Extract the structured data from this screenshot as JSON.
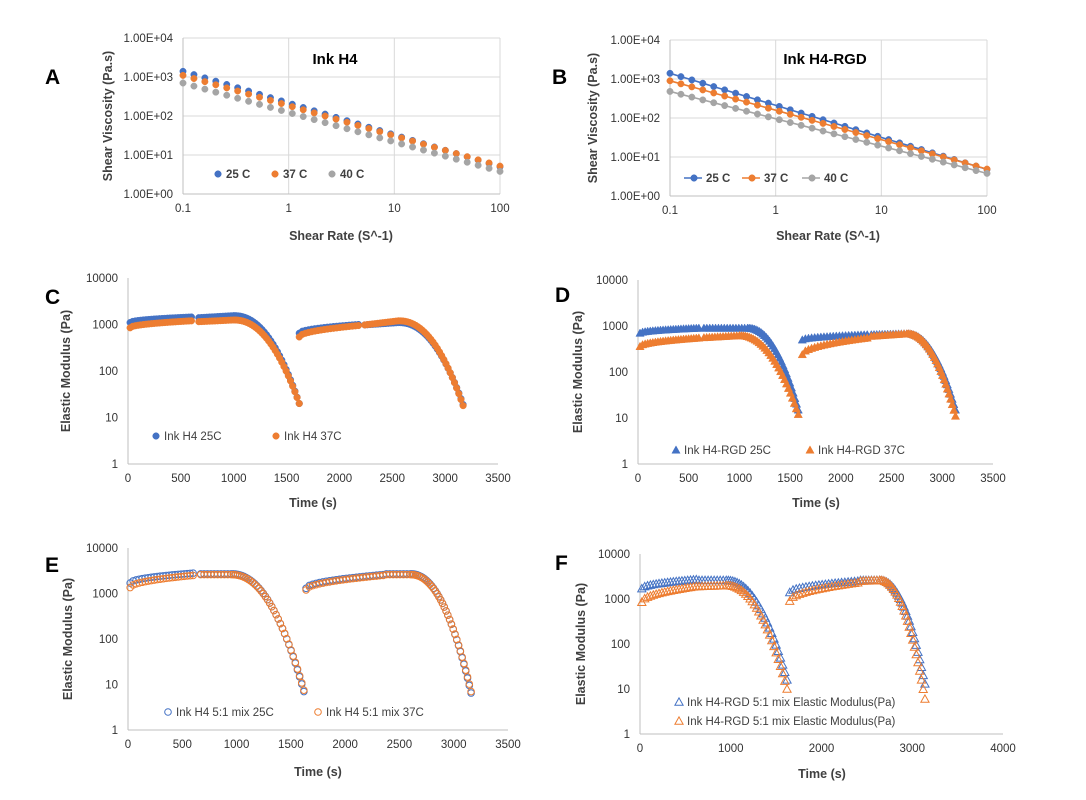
{
  "colors": {
    "blue": "#4472C4",
    "orange": "#ED7D31",
    "gray": "#A5A5A5"
  },
  "chart_data": [
    {
      "id": "A",
      "panel_label": "A",
      "type": "scatter",
      "title": "Ink H4",
      "xlabel": "Shear Rate (S^-1)",
      "ylabel": "Shear Viscosity (Pa.s)",
      "x_scale": "log",
      "y_scale": "log",
      "xlim": [
        0.1,
        100
      ],
      "ylim": [
        1,
        10000
      ],
      "x_ticks": [
        0.1,
        1,
        10,
        100
      ],
      "x_tick_labels": [
        "0.1",
        "1",
        "10",
        "100"
      ],
      "y_ticks": [
        1,
        10,
        100,
        1000,
        10000
      ],
      "y_tick_labels": [
        "1.00E+00",
        "1.00E+01",
        "1.00E+02",
        "1.00E+03",
        "1.00E+04"
      ],
      "grid": true,
      "legend_position": "bottom-left",
      "series": [
        {
          "name": "25 C",
          "color": "#4472C4",
          "marker": "circle",
          "x_range": [
            0.1,
            100
          ],
          "y_at_xmin": 1400,
          "y_at_xmax": 5.0,
          "n_points": 30
        },
        {
          "name": "37 C",
          "color": "#ED7D31",
          "marker": "circle",
          "x_range": [
            0.1,
            100
          ],
          "y_at_xmin": 1100,
          "y_at_xmax": 5.2,
          "n_points": 30
        },
        {
          "name": "40 C",
          "color": "#A5A5A5",
          "marker": "circle",
          "x_range": [
            0.1,
            100
          ],
          "y_at_xmin": 700,
          "y_at_xmax": 3.8,
          "n_points": 30
        }
      ]
    },
    {
      "id": "B",
      "panel_label": "B",
      "type": "line",
      "title": "Ink H4-RGD",
      "xlabel": "Shear Rate (S^-1)",
      "ylabel": "Shear Viscosity (Pa.s)",
      "x_scale": "log",
      "y_scale": "log",
      "xlim": [
        0.1,
        100
      ],
      "ylim": [
        1,
        10000
      ],
      "x_ticks": [
        0.1,
        1,
        10,
        100
      ],
      "x_tick_labels": [
        "0.1",
        "1",
        "10",
        "100"
      ],
      "y_ticks": [
        1,
        10,
        100,
        1000,
        10000
      ],
      "y_tick_labels": [
        "1.00E+00",
        "1.00E+01",
        "1.00E+02",
        "1.00E+03",
        "1.00E+04"
      ],
      "grid": true,
      "legend_position": "bottom-left",
      "series": [
        {
          "name": "25 C",
          "color": "#4472C4",
          "marker": "circle",
          "x_range": [
            0.1,
            100
          ],
          "y_at_xmin": 1400,
          "y_at_xmax": 4.8,
          "n_points": 30
        },
        {
          "name": "37 C",
          "color": "#ED7D31",
          "marker": "circle",
          "x_range": [
            0.1,
            100
          ],
          "y_at_xmin": 900,
          "y_at_xmax": 4.9,
          "n_points": 30
        },
        {
          "name": "40 C",
          "color": "#A5A5A5",
          "marker": "circle",
          "x_range": [
            0.1,
            100
          ],
          "y_at_xmin": 480,
          "y_at_xmax": 3.8,
          "n_points": 30
        }
      ]
    },
    {
      "id": "C",
      "panel_label": "C",
      "type": "scatter",
      "title": "",
      "xlabel": "Time (s)",
      "ylabel": "Elastic Modulus (Pa)",
      "x_scale": "linear",
      "y_scale": "log",
      "xlim": [
        0,
        3500
      ],
      "ylim": [
        1,
        10000
      ],
      "x_ticks": [
        0,
        500,
        1000,
        1500,
        2000,
        2500,
        3000,
        3500
      ],
      "x_tick_labels": [
        "0",
        "500",
        "1000",
        "1500",
        "2000",
        "2500",
        "3000",
        "3500"
      ],
      "y_ticks": [
        1,
        10,
        100,
        1000,
        10000
      ],
      "y_tick_labels": [
        "1",
        "10",
        "100",
        "1000",
        "10000"
      ],
      "grid": false,
      "legend_position": "bottom-left",
      "series": [
        {
          "name": "Ink H4 25C",
          "color": "#4472C4",
          "marker": "circle",
          "fill": "solid",
          "segments": [
            {
              "x0": 20,
              "x1": 600,
              "y0": 1100,
              "y1": 1450,
              "n": 24
            },
            {
              "x0": 670,
              "x1": 1000,
              "y0": 1400,
              "y1": 1550,
              "x_drop": 1420,
              "y_plateau_end": 1300,
              "x_end": 1620,
              "y_end": 20,
              "n_plateau": 14,
              "n_drop": 30
            },
            {
              "x0": 1620,
              "x1": 2180,
              "y0": 650,
              "y1": 1000,
              "n": 20
            },
            {
              "x0": 2240,
              "x1": 2560,
              "y0": 980,
              "y1": 1100,
              "x_drop": 2900,
              "y_plateau_end": 950,
              "x_end": 3170,
              "y_end": 19,
              "n_plateau": 14,
              "n_drop": 30
            }
          ]
        },
        {
          "name": "Ink H4 37C",
          "color": "#ED7D31",
          "marker": "circle",
          "fill": "solid",
          "segments": [
            {
              "x0": 20,
              "x1": 600,
              "y0": 850,
              "y1": 1200,
              "n": 24
            },
            {
              "x0": 670,
              "x1": 1000,
              "y0": 1150,
              "y1": 1250,
              "x_drop": 1400,
              "y_plateau_end": 1100,
              "x_end": 1620,
              "y_end": 20,
              "n_plateau": 14,
              "n_drop": 30
            },
            {
              "x0": 1620,
              "x1": 2180,
              "y0": 540,
              "y1": 950,
              "n": 20
            },
            {
              "x0": 2240,
              "x1": 2560,
              "y0": 980,
              "y1": 1200,
              "x_drop": 2900,
              "y_plateau_end": 1050,
              "x_end": 3170,
              "y_end": 18,
              "n_plateau": 14,
              "n_drop": 30
            }
          ]
        }
      ]
    },
    {
      "id": "D",
      "panel_label": "D",
      "type": "scatter",
      "title": "",
      "xlabel": "Time (s)",
      "ylabel": "Elastic Modulus (Pa)",
      "x_scale": "linear",
      "y_scale": "log",
      "xlim": [
        0,
        3500
      ],
      "ylim": [
        1,
        10000
      ],
      "x_ticks": [
        0,
        500,
        1000,
        1500,
        2000,
        2500,
        3000,
        3500
      ],
      "x_tick_labels": [
        "0",
        "500",
        "1000",
        "1500",
        "2000",
        "2500",
        "3000",
        "3500"
      ],
      "y_ticks": [
        1,
        10,
        100,
        1000,
        10000
      ],
      "y_tick_labels": [
        "1",
        "10",
        "100",
        "1000",
        "10000"
      ],
      "grid": false,
      "legend_position": "bottom-left",
      "series": [
        {
          "name": "Ink H4-RGD 25C",
          "color": "#4472C4",
          "marker": "triangle",
          "fill": "solid",
          "segments": [
            {
              "x0": 20,
              "x1": 600,
              "y0": 700,
              "y1": 900,
              "n": 24
            },
            {
              "x0": 650,
              "x1": 1080,
              "y0": 900,
              "y1": 900,
              "x_drop": 1330,
              "y_plateau_end": 800,
              "x_end": 1580,
              "y_end": 15,
              "n_plateau": 16,
              "n_drop": 30
            },
            {
              "x0": 1620,
              "x1": 2260,
              "y0": 500,
              "y1": 650,
              "n": 22
            },
            {
              "x0": 2300,
              "x1": 2650,
              "y0": 650,
              "y1": 680,
              "x_drop": 2880,
              "y_plateau_end": 600,
              "x_end": 3130,
              "y_end": 15,
              "n_plateau": 14,
              "n_drop": 30
            }
          ]
        },
        {
          "name": "Ink H4-RGD 37C",
          "color": "#ED7D31",
          "marker": "triangle",
          "fill": "solid",
          "segments": [
            {
              "x0": 20,
              "x1": 600,
              "y0": 360,
              "y1": 550,
              "n": 24
            },
            {
              "x0": 650,
              "x1": 1000,
              "y0": 560,
              "y1": 620,
              "x_drop": 1280,
              "y_plateau_end": 520,
              "x_end": 1580,
              "y_end": 12,
              "n_plateau": 14,
              "n_drop": 30
            },
            {
              "x0": 1620,
              "x1": 2260,
              "y0": 240,
              "y1": 550,
              "n": 22
            },
            {
              "x0": 2300,
              "x1": 2650,
              "y0": 600,
              "y1": 680,
              "x_drop": 2850,
              "y_plateau_end": 600,
              "x_end": 3130,
              "y_end": 11,
              "n_plateau": 14,
              "n_drop": 30
            }
          ]
        }
      ]
    },
    {
      "id": "E",
      "panel_label": "E",
      "type": "scatter",
      "title": "",
      "xlabel": "Time (s)",
      "ylabel": "Elastic Modulus (Pa)",
      "x_scale": "linear",
      "y_scale": "log",
      "xlim": [
        0,
        3500
      ],
      "ylim": [
        1,
        10000
      ],
      "x_ticks": [
        0,
        500,
        1000,
        1500,
        2000,
        2500,
        3000,
        3500
      ],
      "x_tick_labels": [
        "0",
        "500",
        "1000",
        "1500",
        "2000",
        "2500",
        "3000",
        "3500"
      ],
      "y_ticks": [
        1,
        10,
        100,
        1000,
        10000
      ],
      "y_tick_labels": [
        "1",
        "10",
        "100",
        "1000",
        "10000"
      ],
      "grid": false,
      "legend_position": "bottom-left",
      "series": [
        {
          "name": "Ink H4 5:1 mix 25C",
          "color": "#4472C4",
          "marker": "circle",
          "fill": "open",
          "segments": [
            {
              "x0": 20,
              "x1": 600,
              "y0": 1700,
              "y1": 2800,
              "n": 22
            },
            {
              "x0": 670,
              "x1": 950,
              "y0": 2700,
              "y1": 2700,
              "x_drop": 1100,
              "y_plateau_end": 2300,
              "x_end": 1620,
              "y_end": 7,
              "n_plateau": 10,
              "n_drop": 34
            },
            {
              "x0": 1640,
              "x1": 2350,
              "y0": 1300,
              "y1": 2600,
              "n": 24
            },
            {
              "x0": 2380,
              "x1": 2600,
              "y0": 2700,
              "y1": 2700,
              "x_drop": 2700,
              "y_plateau_end": 2300,
              "x_end": 3160,
              "y_end": 6.5,
              "n_plateau": 8,
              "n_drop": 34
            }
          ]
        },
        {
          "name": "Ink H4 5:1 mix 37C",
          "color": "#ED7D31",
          "marker": "circle",
          "fill": "open",
          "segments": [
            {
              "x0": 20,
              "x1": 600,
              "y0": 1350,
              "y1": 2500,
              "n": 22
            },
            {
              "x0": 670,
              "x1": 950,
              "y0": 2600,
              "y1": 2600,
              "x_drop": 1100,
              "y_plateau_end": 2200,
              "x_end": 1620,
              "y_end": 7.5,
              "n_plateau": 10,
              "n_drop": 34
            },
            {
              "x0": 1640,
              "x1": 2350,
              "y0": 1200,
              "y1": 2500,
              "n": 24
            },
            {
              "x0": 2380,
              "x1": 2600,
              "y0": 2600,
              "y1": 2600,
              "x_drop": 2700,
              "y_plateau_end": 2200,
              "x_end": 3160,
              "y_end": 7,
              "n_plateau": 8,
              "n_drop": 34
            }
          ]
        }
      ]
    },
    {
      "id": "F",
      "panel_label": "F",
      "type": "scatter",
      "title": "",
      "xlabel": "Time (s)",
      "ylabel": "Elastic Modulus (Pa)",
      "x_scale": "linear",
      "y_scale": "log",
      "xlim": [
        0,
        4000
      ],
      "ylim": [
        1,
        10000
      ],
      "x_ticks": [
        0,
        1000,
        2000,
        3000,
        4000
      ],
      "x_tick_labels": [
        "0",
        "1000",
        "2000",
        "3000",
        "4000"
      ],
      "y_ticks": [
        1,
        10,
        100,
        1000,
        10000
      ],
      "y_tick_labels": [
        "1",
        "10",
        "100",
        "1000",
        "10000"
      ],
      "grid": false,
      "legend_position": "bottom-left",
      "series": [
        {
          "name": "Ink H4-RGD 5:1 mix Elastic Modulus(Pa)",
          "color": "#4472C4",
          "marker": "triangle",
          "fill": "open",
          "segments": [
            {
              "x0": 20,
              "x1": 620,
              "y0": 1700,
              "y1": 2700,
              "n": 20
            },
            {
              "x0": 650,
              "x1": 950,
              "y0": 2600,
              "y1": 2600,
              "x_drop": 1080,
              "y_plateau_end": 2000,
              "x_end": 1620,
              "y_end": 16,
              "n_plateau": 10,
              "n_drop": 28
            },
            {
              "x0": 1650,
              "x1": 2400,
              "y0": 1400,
              "y1": 2500,
              "n": 22
            },
            {
              "x0": 2430,
              "x1": 2640,
              "y0": 2600,
              "y1": 2600,
              "x_drop": 2760,
              "y_plateau_end": 2100,
              "x_end": 3140,
              "y_end": 13,
              "n_plateau": 8,
              "n_drop": 26
            }
          ]
        },
        {
          "name": "Ink H4-RGD 5:1 mix Elastic Modulus(Pa)",
          "color": "#ED7D31",
          "marker": "triangle",
          "fill": "open",
          "segments": [
            {
              "x0": 20,
              "x1": 620,
              "y0": 850,
              "y1": 1900,
              "n": 20
            },
            {
              "x0": 650,
              "x1": 950,
              "y0": 1900,
              "y1": 2000,
              "x_drop": 1050,
              "y_plateau_end": 1800,
              "x_end": 1620,
              "y_end": 10,
              "n_plateau": 10,
              "n_drop": 28
            },
            {
              "x0": 1650,
              "x1": 2400,
              "y0": 900,
              "y1": 2300,
              "n": 22
            },
            {
              "x0": 2430,
              "x1": 2640,
              "y0": 2500,
              "y1": 2600,
              "x_drop": 2740,
              "y_plateau_end": 2100,
              "x_end": 3140,
              "y_end": 6,
              "n_plateau": 8,
              "n_drop": 26
            }
          ]
        }
      ]
    }
  ]
}
